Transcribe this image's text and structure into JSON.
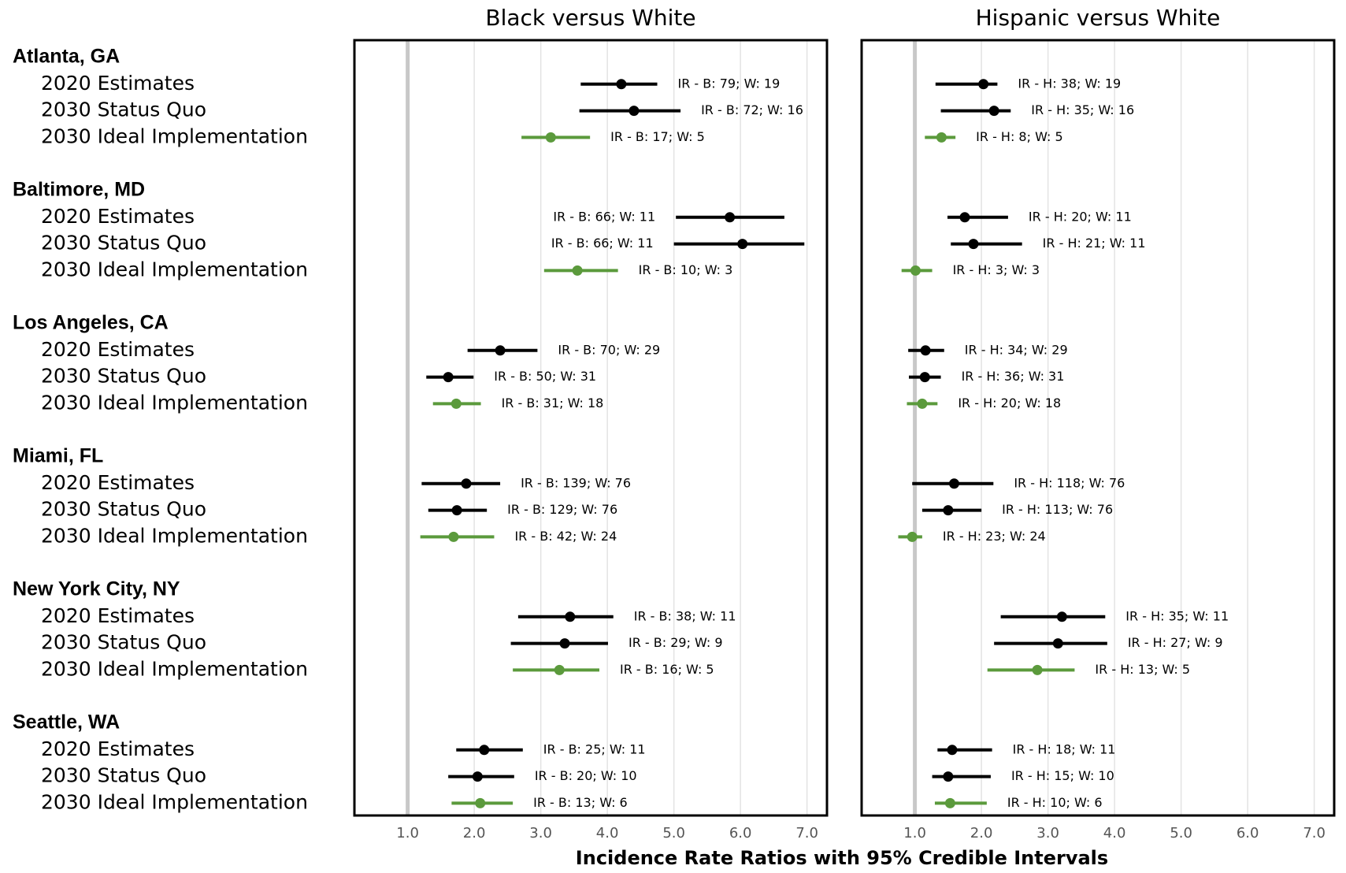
{
  "groups": [
    {
      "name": "Atlanta, GA",
      "rows": [
        "2020 Estimates",
        "2030 Status Quo",
        "2030 Ideal Implementation"
      ]
    },
    {
      "name": "Baltimore, MD",
      "rows": [
        "2020 Estimates",
        "2030 Status Quo",
        "2030 Ideal Implementation"
      ]
    },
    {
      "name": "Los Angeles, CA",
      "rows": [
        "2020 Estimates",
        "2030 Status Quo",
        "2030 Ideal Implementation"
      ]
    },
    {
      "name": "Miami, FL",
      "rows": [
        "2020 Estimates",
        "2030 Status Quo",
        "2030 Ideal Implementation"
      ]
    },
    {
      "name": "New York City, NY",
      "rows": [
        "2020 Estimates",
        "2030 Status Quo",
        "2030 Ideal Implementation"
      ]
    },
    {
      "name": "Seattle, WA",
      "rows": [
        "2020 Estimates",
        "2030 Status Quo",
        "2030 Ideal Implementation"
      ]
    }
  ],
  "x_label": "Incidence Rate Ratios with 95% Credible Intervals",
  "chart_data": [
    {
      "type": "forest",
      "title": "Black versus White",
      "xlim": [
        0.2,
        7.3
      ],
      "xticks": [
        {
          "value": 1,
          "label": "1.0"
        },
        {
          "value": 2,
          "label": "2.0"
        },
        {
          "value": 3,
          "label": "3.0"
        },
        {
          "value": 4,
          "label": "4.0"
        },
        {
          "value": 5,
          "label": "5.0"
        },
        {
          "value": 6,
          "label": "6.0"
        },
        {
          "value": 7,
          "label": "7.0"
        }
      ],
      "reference_line": 1,
      "grid": true,
      "scenario_colors": [
        "#000000",
        "#000000",
        "#5b9a3c"
      ],
      "values": [
        4.21,
        4.4,
        3.15,
        5.84,
        6.03,
        3.55,
        2.39,
        1.61,
        1.73,
        1.88,
        1.74,
        1.69,
        3.44,
        3.36,
        3.28,
        2.15,
        2.05,
        2.09
      ],
      "lower": [
        3.6,
        3.58,
        2.71,
        5.03,
        5.0,
        3.05,
        1.9,
        1.28,
        1.38,
        1.21,
        1.31,
        1.19,
        2.66,
        2.55,
        2.58,
        1.73,
        1.61,
        1.66
      ],
      "upper": [
        4.75,
        5.1,
        3.74,
        6.66,
        6.96,
        4.16,
        2.95,
        1.99,
        2.1,
        2.39,
        2.19,
        2.3,
        4.09,
        4.01,
        3.88,
        2.73,
        2.6,
        2.58
      ],
      "annotations": [
        "IR - B: 79; W: 19",
        "IR - B: 72; W: 16",
        "IR - B: 17; W: 5",
        "IR - B: 66; W: 11",
        "IR - B: 66; W: 11",
        "IR - B: 10; W: 3",
        "IR - B: 70; W: 29",
        "IR - B: 50; W: 31",
        "IR - B: 31; W: 18",
        "IR - B: 139; W: 76",
        "IR - B: 129; W: 76",
        "IR - B: 42; W: 24",
        "IR - B: 38; W: 11",
        "IR - B: 29; W: 9",
        "IR - B: 16; W: 5",
        "IR - B: 25; W: 11",
        "IR - B: 20; W: 10",
        "IR - B: 13; W: 6"
      ]
    },
    {
      "type": "forest",
      "title": "Hispanic versus White",
      "xlim": [
        0.2,
        7.3
      ],
      "xticks": [
        {
          "value": 1,
          "label": "1.0"
        },
        {
          "value": 2,
          "label": "2.0"
        },
        {
          "value": 3,
          "label": "3.0"
        },
        {
          "value": 4,
          "label": "4.0"
        },
        {
          "value": 5,
          "label": "5.0"
        },
        {
          "value": 6,
          "label": "6.0"
        },
        {
          "value": 7,
          "label": "7.0"
        }
      ],
      "reference_line": 1,
      "grid": true,
      "scenario_colors": [
        "#000000",
        "#000000",
        "#5b9a3c"
      ],
      "values": [
        2.03,
        2.19,
        1.4,
        1.75,
        1.88,
        1.01,
        1.16,
        1.15,
        1.11,
        1.59,
        1.5,
        0.96,
        3.21,
        3.15,
        2.84,
        1.56,
        1.5,
        1.53
      ],
      "lower": [
        1.31,
        1.39,
        1.15,
        1.49,
        1.54,
        0.8,
        0.9,
        0.91,
        0.88,
        0.96,
        1.11,
        0.75,
        2.29,
        2.19,
        2.09,
        1.34,
        1.26,
        1.3
      ],
      "upper": [
        2.24,
        2.44,
        1.61,
        2.4,
        2.61,
        1.26,
        1.44,
        1.39,
        1.34,
        2.18,
        2.0,
        1.11,
        3.86,
        3.89,
        3.4,
        2.16,
        2.14,
        2.08
      ],
      "annotations": [
        "IR - H: 38; W: 19",
        "IR - H: 35; W: 16",
        "IR - H: 8; W: 5",
        "IR - H: 20; W: 11",
        "IR - H: 21; W: 11",
        "IR - H: 3; W: 3",
        "IR - H: 34; W: 29",
        "IR - H: 36; W: 31",
        "IR - H: 20; W: 18",
        "IR - H: 118; W: 76",
        "IR - H: 113; W: 76",
        "IR - H: 23; W: 24",
        "IR - H: 35; W: 11",
        "IR - H: 27; W: 9",
        "IR - H: 13; W: 5",
        "IR - H: 18; W: 11",
        "IR - H: 15; W: 10",
        "IR - H: 10; W: 6"
      ]
    }
  ]
}
